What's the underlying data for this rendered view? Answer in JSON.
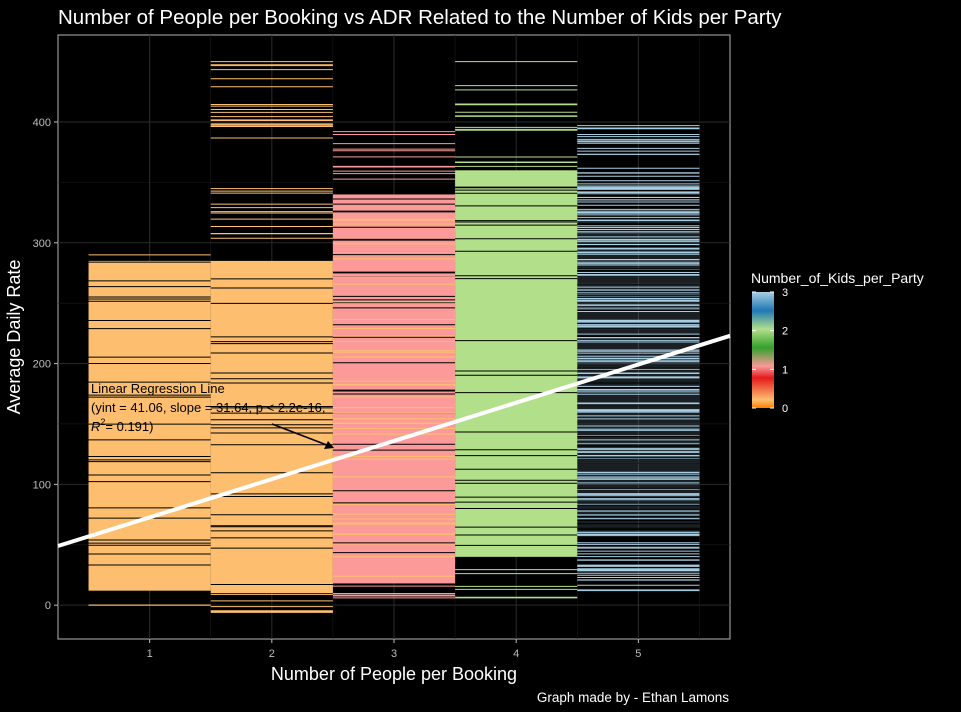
{
  "chart_data": {
    "type": "bar",
    "title": "Number of People per Booking vs ADR Related to the Number of Kids per Party",
    "xlabel": "Number of People per Booking",
    "ylabel": "Average Daily Rate",
    "categories": [
      "1",
      "2",
      "3",
      "4",
      "5"
    ],
    "y_ticks": [
      "0",
      "100",
      "200",
      "300",
      "400"
    ],
    "ylim": [
      -28,
      472
    ],
    "xlim": [
      0.25,
      5.75
    ],
    "grid": true,
    "columns": [
      {
        "x": 1,
        "kids": 0,
        "ymin": 0,
        "ymax": 290,
        "color": "#FDBF6F"
      },
      {
        "x": 2,
        "kids": 0,
        "ymin": -6,
        "ymax": 450,
        "color": "#FDBF6F"
      },
      {
        "x": 3,
        "kids": 1,
        "ymin": 6,
        "ymax": 392,
        "color": "#FB9A99"
      },
      {
        "x": 4,
        "kids": 2,
        "ymin": 6,
        "ymax": 450,
        "color": "#B2DF8A"
      },
      {
        "x": 5,
        "kids": 3,
        "ymin": 12,
        "ymax": 397,
        "color": "#A6CEE3"
      }
    ],
    "regression": {
      "intercept": 41.06,
      "slope": 31.64
    },
    "annotation": {
      "line1": "Linear Regression Line",
      "line2": "(yint = 41.06, slope = 31.64, p < 2.2e-16,",
      "line3_r": "R",
      "line3_sup": "2",
      "line3_rest": "= 0.191)"
    },
    "legend": {
      "title": "Number_of_Kids_per_Party",
      "placement": "right",
      "ticks": [
        "3",
        "2",
        "1",
        "0"
      ],
      "range": [
        0,
        3
      ],
      "colors": [
        "#FF7F00",
        "#FDBF6F",
        "#E31A1C",
        "#FB9A99",
        "#33A02C",
        "#B2DF8A",
        "#1F78B4",
        "#A6CEE3"
      ]
    },
    "caption": "Graph made by - Ethan Lamons"
  }
}
